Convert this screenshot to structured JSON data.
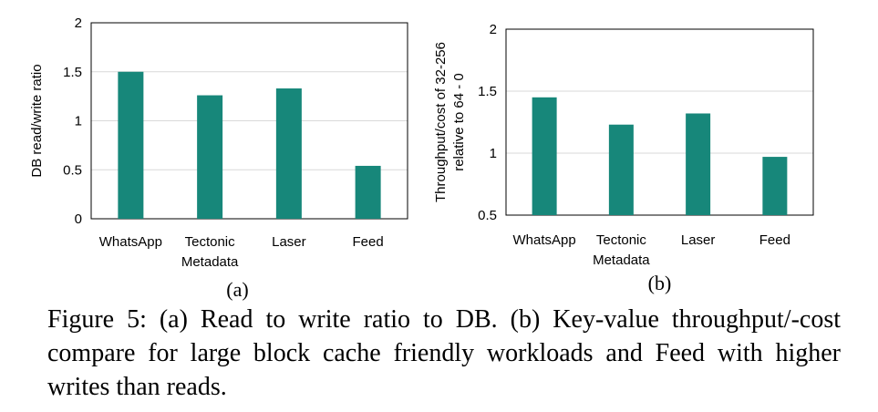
{
  "colors": {
    "bar": "#17877a",
    "grid": "#d9d9d9",
    "frame": "#000000"
  },
  "chart_data": [
    {
      "type": "bar",
      "title": "",
      "xlabel": "",
      "ylabel": "DB read/write ratio",
      "ylim": [
        0,
        2
      ],
      "yticks": [
        "0",
        "0.5",
        "1",
        "1.5",
        "2"
      ],
      "grid": true,
      "categories": [
        [
          "WhatsApp"
        ],
        [
          "Tectonic",
          "Metadata"
        ],
        [
          "Laser"
        ],
        [
          "Feed"
        ]
      ],
      "values": [
        1.5,
        1.26,
        1.33,
        0.54
      ],
      "sublabel": "(a)"
    },
    {
      "type": "bar",
      "title": "",
      "xlabel": "",
      "ylabel_lines": [
        "Throughput/cost of 32-256",
        "relative to 64 - 0"
      ],
      "ylim": [
        0.5,
        2
      ],
      "yticks": [
        "0.5",
        "1",
        "1.5",
        "2"
      ],
      "grid": true,
      "categories": [
        [
          "WhatsApp"
        ],
        [
          "Tectonic",
          "Metadata"
        ],
        [
          "Laser"
        ],
        [
          "Feed"
        ]
      ],
      "values": [
        1.45,
        1.23,
        1.32,
        0.97
      ],
      "sublabel": "(b)"
    }
  ],
  "caption": "Figure 5: (a) Read to write ratio to DB. (b) Key-value throughput/-cost compare for large block cache friendly workloads and Feed with higher writes than reads."
}
